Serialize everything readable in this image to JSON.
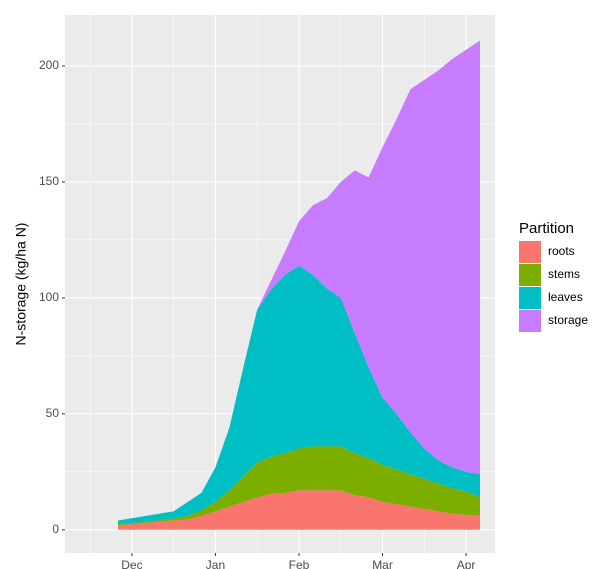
{
  "chart_data": {
    "type": "stacked_area",
    "y_label": "N-storage (kg/ha N)",
    "legend_title": "Partition",
    "legend_position": "right",
    "grid": true,
    "categories": [
      null,
      "Dec",
      null,
      null,
      null,
      null,
      null,
      "Jan",
      null,
      null,
      null,
      null,
      null,
      "Feb",
      null,
      null,
      null,
      null,
      null,
      "Mar",
      null,
      null,
      null,
      null,
      null,
      "Apr",
      null
    ],
    "ylim": [
      -10,
      222
    ],
    "yticks": [
      0,
      50,
      100,
      150,
      200
    ],
    "series": [
      {
        "name": "roots",
        "color": "#F8766D",
        "values": [
          2,
          2.5,
          3,
          3.5,
          4,
          4.5,
          6,
          8,
          10,
          12,
          14,
          15.5,
          16,
          17,
          17,
          17,
          17,
          15,
          14,
          12,
          11,
          10,
          9,
          8,
          7,
          6.5,
          6
        ]
      },
      {
        "name": "stems",
        "color": "#7CAE00",
        "values": [
          0.5,
          0.5,
          0.5,
          0.7,
          1,
          1.5,
          2.5,
          4,
          7,
          11,
          15,
          16,
          17,
          18,
          19,
          19,
          19,
          18,
          17,
          16,
          15,
          14,
          13,
          12,
          11,
          10,
          8
        ]
      },
      {
        "name": "leaves",
        "color": "#00BFC4",
        "values": [
          1.5,
          2,
          2.5,
          2.8,
          3,
          6,
          7.5,
          15,
          27,
          47,
          66,
          72,
          77,
          79,
          74,
          68,
          64,
          52,
          39,
          29,
          24,
          18,
          13,
          10,
          9,
          8.5,
          10
        ]
      },
      {
        "name": "storage",
        "color": "#C77CFF",
        "values": [
          0,
          0,
          0,
          0,
          0,
          0,
          0,
          0,
          0,
          0,
          0,
          4,
          10,
          19,
          30,
          39,
          50,
          70,
          82,
          108,
          127,
          148,
          159,
          168,
          176,
          182,
          187
        ]
      }
    ]
  }
}
